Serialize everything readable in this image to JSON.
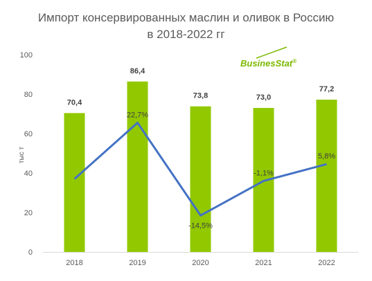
{
  "title_line1": "Импорт консервированных маслин и оливок в Россию",
  "title_line2": "в 2018-2022 гг",
  "logo": {
    "part1": "Busines",
    "part2": "Stat",
    "mark": "®",
    "color1": "#7ab800",
    "color2": "#7ab800"
  },
  "colors": {
    "bar": "#92c800",
    "line": "#4472c4",
    "grid": "#d9d9d9"
  },
  "chart_data": {
    "type": "bar",
    "categories": [
      "2018",
      "2019",
      "2020",
      "2021",
      "2022"
    ],
    "values": [
      70.4,
      86.4,
      73.8,
      73.0,
      77.2
    ],
    "value_labels": [
      "70,4",
      "86,4",
      "73,8",
      "73,0",
      "77,2"
    ],
    "growth_labels": [
      "",
      "22,7%",
      "-14,5%",
      "-1,1%",
      "5,8%"
    ],
    "growth_values": [
      null,
      22.7,
      -14.5,
      -1.1,
      5.8
    ],
    "ylabel": "тыс т",
    "ylim": [
      0,
      100
    ],
    "yticks": [
      "0",
      "20",
      "40",
      "60",
      "80",
      "100"
    ],
    "grid": false
  }
}
